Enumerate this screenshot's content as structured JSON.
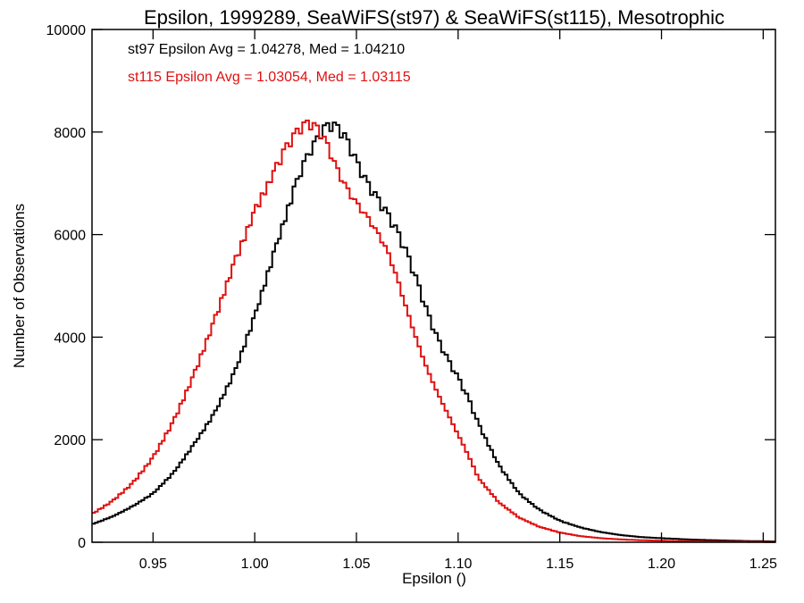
{
  "chart_data": {
    "type": "line",
    "title": "Epsilon, 1999289, SeaWiFS(st97) & SeaWiFS(st115), Mesotrophic",
    "xlabel": "Epsilon ()",
    "ylabel": "Number of Observations",
    "xlim": [
      0.92,
      1.256
    ],
    "ylim": [
      0,
      10000
    ],
    "x_ticks": [
      "0.95",
      "1.00",
      "1.05",
      "1.10",
      "1.15",
      "1.20",
      "1.25"
    ],
    "x_tick_values": [
      0.95,
      1.0,
      1.05,
      1.1,
      1.15,
      1.2,
      1.25
    ],
    "y_ticks": [
      "0",
      "2000",
      "4000",
      "6000",
      "8000",
      "10000"
    ],
    "y_tick_values": [
      0,
      2000,
      4000,
      6000,
      8000,
      10000
    ],
    "grid": false,
    "step": true,
    "annotations": [
      {
        "text": "st97 Epsilon Avg = 1.04278, Med = 1.04210",
        "color": "#000000"
      },
      {
        "text": "st115 Epsilon Avg = 1.03054, Med = 1.03115",
        "color": "#e01010"
      }
    ],
    "series": [
      {
        "color": "#000000",
        "x": [
          0.92,
          0.93,
          0.94,
          0.95,
          0.96,
          0.97,
          0.98,
          0.99,
          1.0,
          1.01,
          1.02,
          1.025,
          1.03,
          1.035,
          1.04,
          1.045,
          1.05,
          1.055,
          1.06,
          1.065,
          1.07,
          1.075,
          1.08,
          1.085,
          1.09,
          1.095,
          1.1,
          1.105,
          1.11,
          1.12,
          1.13,
          1.14,
          1.15,
          1.16,
          1.17,
          1.18,
          1.19,
          1.2,
          1.21,
          1.22,
          1.23,
          1.24,
          1.256
        ],
        "y": [
          350,
          500,
          700,
          950,
          1350,
          1900,
          2500,
          3300,
          4400,
          5700,
          6950,
          7450,
          7800,
          8100,
          8100,
          7850,
          7400,
          7000,
          6700,
          6400,
          6050,
          5600,
          5050,
          4450,
          3950,
          3550,
          3200,
          2800,
          2300,
          1500,
          950,
          630,
          420,
          290,
          200,
          140,
          100,
          80,
          60,
          45,
          35,
          25,
          15
        ]
      },
      {
        "color": "#e01010",
        "x": [
          0.92,
          0.93,
          0.94,
          0.95,
          0.96,
          0.97,
          0.98,
          0.99,
          1.0,
          1.01,
          1.015,
          1.02,
          1.025,
          1.03,
          1.035,
          1.04,
          1.045,
          1.05,
          1.055,
          1.06,
          1.065,
          1.07,
          1.075,
          1.08,
          1.085,
          1.09,
          1.095,
          1.1,
          1.105,
          1.11,
          1.12,
          1.13,
          1.14,
          1.15,
          1.16,
          1.17,
          1.18,
          1.19,
          1.2,
          1.21,
          1.22,
          1.23,
          1.256
        ],
        "y": [
          550,
          800,
          1150,
          1650,
          2350,
          3250,
          4300,
          5450,
          6450,
          7250,
          7650,
          7950,
          8150,
          8100,
          7800,
          7300,
          6900,
          6600,
          6350,
          6050,
          5700,
          5150,
          4500,
          3900,
          3350,
          2900,
          2500,
          2100,
          1700,
          1250,
          780,
          480,
          300,
          190,
          120,
          80,
          55,
          40,
          30,
          20,
          15,
          10,
          5
        ]
      }
    ]
  }
}
